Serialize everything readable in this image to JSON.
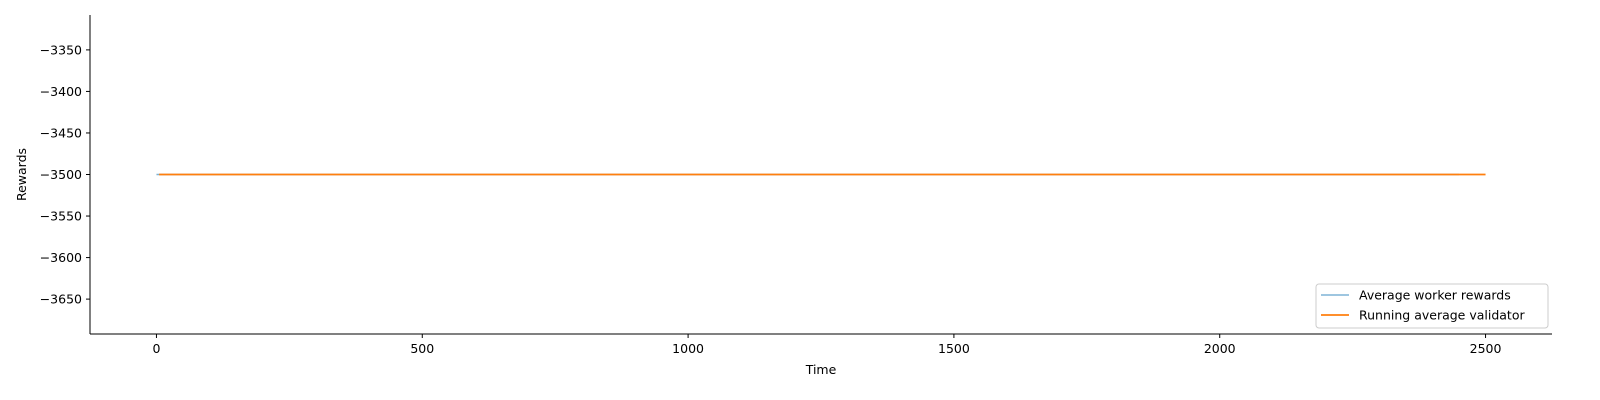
{
  "chart_data": {
    "type": "line",
    "title": "",
    "xlabel": "Time",
    "ylabel": "Rewards",
    "xlim": [
      -125,
      2625
    ],
    "ylim": [
      -3692,
      -3308
    ],
    "xticks": [
      0,
      500,
      1000,
      1500,
      2000,
      2500
    ],
    "yticks": [
      -3350,
      -3400,
      -3450,
      -3500,
      -3550,
      -3600,
      -3650
    ],
    "xtick_labels": [
      "0",
      "500",
      "1000",
      "1500",
      "2000",
      "2500"
    ],
    "ytick_labels": [
      "−3350",
      "−3400",
      "−3450",
      "−3500",
      "−3550",
      "−3600",
      "−3650"
    ],
    "grid": false,
    "legend_position": "lower-right",
    "series": [
      {
        "name": "Average worker rewards",
        "color": "#7fb3d5",
        "x": [
          0,
          2450
        ],
        "y": [
          -3500,
          -3500
        ]
      },
      {
        "name": "Running average validator",
        "color": "#ff7f0e",
        "x": [
          5,
          2500
        ],
        "y": [
          -3500,
          -3500
        ]
      }
    ]
  }
}
